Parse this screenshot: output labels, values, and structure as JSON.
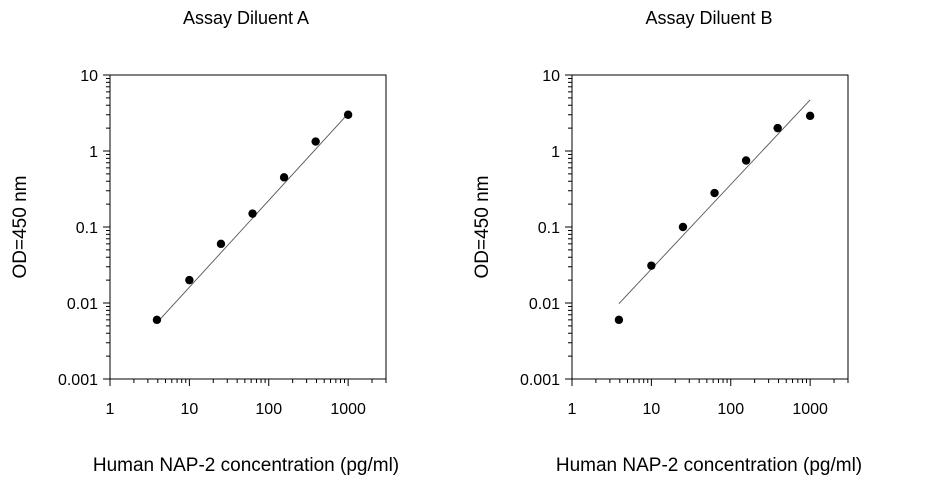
{
  "chart_data": [
    {
      "type": "scatter",
      "title": "Assay Diluent A",
      "xlabel": "Human NAP-2  concentration (pg/ml)",
      "ylabel": "OD=450 nm",
      "x_scale": "log",
      "y_scale": "log",
      "xlim": [
        1,
        3000
      ],
      "ylim": [
        0.001,
        10
      ],
      "x_ticks": [
        "1",
        "10",
        "100",
        "1000"
      ],
      "y_ticks": [
        "0.001",
        "0.01",
        "0.1",
        "1",
        "10"
      ],
      "grid": false,
      "points": [
        {
          "x": 3.9,
          "y": 0.006
        },
        {
          "x": 10,
          "y": 0.02
        },
        {
          "x": 25,
          "y": 0.06
        },
        {
          "x": 62.5,
          "y": 0.15
        },
        {
          "x": 156,
          "y": 0.45
        },
        {
          "x": 390,
          "y": 1.33
        },
        {
          "x": 1000,
          "y": 3.0
        }
      ],
      "fit_line": [
        {
          "x": 3.9,
          "y": 0.0055
        },
        {
          "x": 1000,
          "y": 3.1
        }
      ]
    },
    {
      "type": "scatter",
      "title": "Assay Diluent B",
      "xlabel": "Human NAP-2  concentration (pg/ml)",
      "ylabel": "OD=450 nm",
      "x_scale": "log",
      "y_scale": "log",
      "xlim": [
        1,
        3000
      ],
      "ylim": [
        0.001,
        10
      ],
      "x_ticks": [
        "1",
        "10",
        "100",
        "1000"
      ],
      "y_ticks": [
        "0.001",
        "0.01",
        "0.1",
        "1",
        "10"
      ],
      "grid": false,
      "points": [
        {
          "x": 3.9,
          "y": 0.006
        },
        {
          "x": 10,
          "y": 0.031
        },
        {
          "x": 25,
          "y": 0.1
        },
        {
          "x": 62.5,
          "y": 0.28
        },
        {
          "x": 156,
          "y": 0.75
        },
        {
          "x": 390,
          "y": 2.0
        },
        {
          "x": 1000,
          "y": 2.9
        }
      ],
      "fit_line": [
        {
          "x": 3.9,
          "y": 0.0098
        },
        {
          "x": 1000,
          "y": 4.7
        }
      ]
    }
  ]
}
